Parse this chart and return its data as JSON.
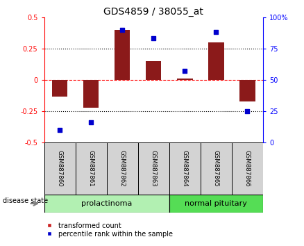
{
  "title": "GDS4859 / 38055_at",
  "samples": [
    "GSM887860",
    "GSM887861",
    "GSM887862",
    "GSM887863",
    "GSM887864",
    "GSM887865",
    "GSM887866"
  ],
  "bar_values": [
    -0.13,
    -0.22,
    0.4,
    0.15,
    0.01,
    0.3,
    -0.17
  ],
  "dot_values": [
    10,
    16,
    90,
    83,
    57,
    88,
    25
  ],
  "bar_color": "#8B1A1A",
  "dot_color": "#0000CD",
  "ylim_left": [
    -0.5,
    0.5
  ],
  "ylim_right": [
    0,
    100
  ],
  "yticks_left": [
    -0.5,
    -0.25,
    0,
    0.25,
    0.5
  ],
  "yticks_right": [
    0,
    25,
    50,
    75,
    100
  ],
  "ytick_right_labels": [
    "0",
    "25",
    "50",
    "75",
    "100%"
  ],
  "hlines": [
    -0.25,
    0,
    0.25
  ],
  "hline_styles": [
    "dotted",
    "dashed",
    "dotted"
  ],
  "hline_colors": [
    "black",
    "red",
    "black"
  ],
  "group_labels": [
    "prolactinoma",
    "normal pituitary"
  ],
  "prolactinoma_color": "#B2F0B2",
  "normal_pituitary_color": "#55DD55",
  "disease_label": "disease state",
  "legend_items": [
    "transformed count",
    "percentile rank within the sample"
  ],
  "legend_colors": [
    "#CC2222",
    "#0000CC"
  ],
  "bar_width": 0.5,
  "title_fontsize": 10,
  "tick_fontsize": 7,
  "label_fontsize": 7,
  "group_fontsize": 8
}
